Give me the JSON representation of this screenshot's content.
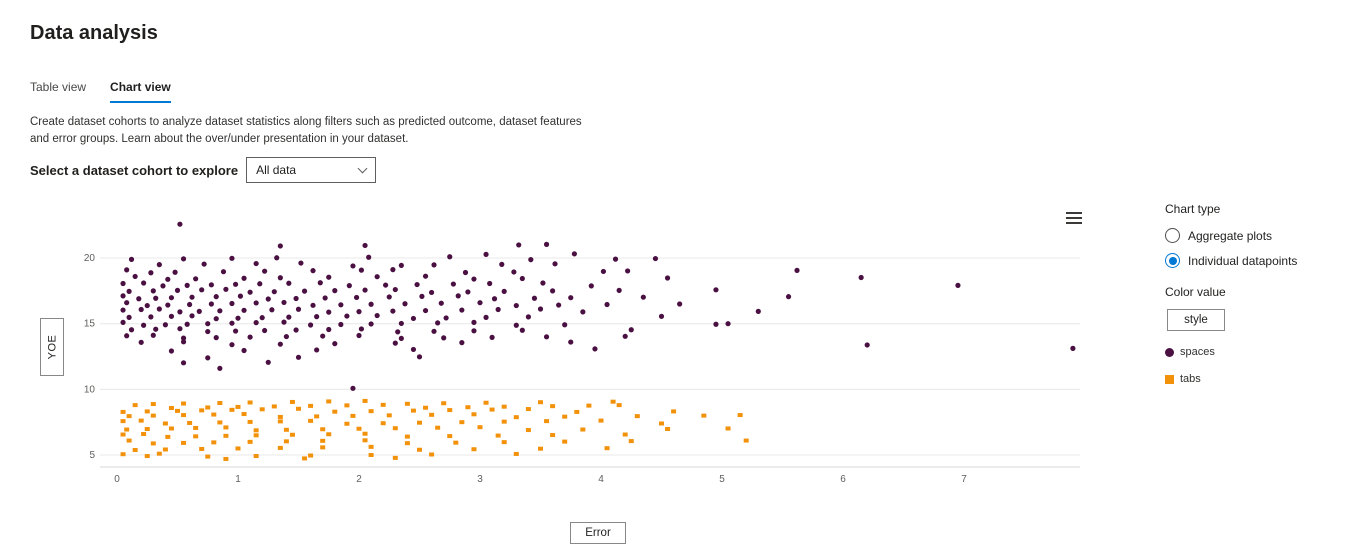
{
  "page": {
    "title": "Data analysis"
  },
  "tabs": [
    {
      "label": "Table view",
      "active": false
    },
    {
      "label": "Chart view",
      "active": true
    }
  ],
  "description": "Create dataset cohorts to analyze dataset statistics along filters such as predicted outcome, dataset features and error groups. Learn about the over/under presentation in your dataset.",
  "cohort_selector": {
    "label": "Select a dataset cohort to explore",
    "value": "All data"
  },
  "chart_panel": {
    "chart_type_label": "Chart type",
    "options": [
      {
        "label": "Aggregate plots",
        "selected": false
      },
      {
        "label": "Individual datapoints",
        "selected": true
      }
    ],
    "color_value_label": "Color value",
    "style_button": "style",
    "legend": [
      {
        "label": "spaces",
        "color": "#4a1042",
        "shape": "circle"
      },
      {
        "label": "tabs",
        "color": "#f2910a",
        "shape": "square"
      }
    ],
    "accent_color": "#0078d4"
  },
  "chart_data": {
    "type": "scatter",
    "xlabel": "Error",
    "ylabel": "YOE",
    "x_ticks": [
      0,
      1,
      2,
      3,
      4,
      5,
      6,
      7
    ],
    "y_ticks": [
      5,
      10,
      15,
      20
    ],
    "xlim": [
      0,
      8
    ],
    "ylim": [
      4,
      23
    ],
    "grid": "horizontal",
    "legend_position": "right",
    "series": [
      {
        "name": "spaces",
        "color": "#4a1042",
        "marker": "circle",
        "rows": [
          {
            "y": 22.7,
            "x": [
              0.52
            ]
          },
          {
            "y": 21.0,
            "x": [
              1.35,
              2.05,
              3.32,
              3.55
            ]
          },
          {
            "y": 20.2,
            "x": [
              3.05,
              3.78
            ]
          },
          {
            "y": 20.0,
            "x": [
              0.12,
              0.55,
              0.95,
              1.32,
              2.08,
              2.75,
              3.42,
              4.12,
              4.45
            ]
          },
          {
            "y": 19.5,
            "x": [
              0.35,
              0.72,
              1.15,
              1.52,
              1.95,
              2.35,
              2.62,
              3.18,
              3.62
            ]
          },
          {
            "y": 19.0,
            "x": [
              0.08,
              0.28,
              0.48,
              0.88,
              1.22,
              1.62,
              2.02,
              2.28,
              2.88,
              3.28,
              4.02,
              4.22,
              5.62
            ]
          },
          {
            "y": 18.5,
            "x": [
              0.15,
              0.42,
              0.65,
              1.05,
              1.35,
              1.75,
              2.15,
              2.55,
              2.95,
              3.35,
              4.55,
              6.15
            ]
          },
          {
            "y": 18.0,
            "x": [
              0.05,
              0.22,
              0.38,
              0.58,
              0.78,
              0.98,
              1.18,
              1.42,
              1.68,
              1.92,
              2.22,
              2.48,
              2.78,
              3.08,
              3.52,
              3.92,
              6.95
            ]
          },
          {
            "y": 17.5,
            "x": [
              0.1,
              0.3,
              0.5,
              0.7,
              0.9,
              1.1,
              1.3,
              1.55,
              1.8,
              2.05,
              2.3,
              2.6,
              2.9,
              3.2,
              3.6,
              4.15,
              4.95
            ]
          },
          {
            "y": 17.0,
            "x": [
              0.05,
              0.18,
              0.32,
              0.45,
              0.62,
              0.82,
              1.02,
              1.25,
              1.48,
              1.72,
              1.98,
              2.25,
              2.52,
              2.82,
              3.12,
              3.45,
              3.75,
              4.35,
              5.55
            ]
          },
          {
            "y": 16.5,
            "x": [
              0.08,
              0.25,
              0.42,
              0.6,
              0.78,
              0.95,
              1.15,
              1.38,
              1.62,
              1.85,
              2.1,
              2.38,
              2.68,
              3.0,
              3.3,
              3.65,
              4.05,
              4.65
            ]
          },
          {
            "y": 16.0,
            "x": [
              0.05,
              0.2,
              0.35,
              0.52,
              0.68,
              0.85,
              1.05,
              1.28,
              1.5,
              1.75,
              2.0,
              2.28,
              2.55,
              2.85,
              3.15,
              3.5,
              3.85,
              5.3
            ]
          },
          {
            "y": 15.5,
            "x": [
              0.1,
              0.28,
              0.45,
              0.62,
              0.82,
              1.0,
              1.2,
              1.42,
              1.65,
              1.9,
              2.15,
              2.45,
              2.72,
              3.05,
              3.4,
              4.5
            ]
          },
          {
            "y": 15.0,
            "x": [
              0.05,
              0.22,
              0.4,
              0.58,
              0.75,
              0.95,
              1.15,
              1.38,
              1.6,
              1.85,
              2.1,
              2.35,
              2.65,
              2.95,
              3.3,
              3.7,
              4.95,
              5.05
            ]
          },
          {
            "y": 14.5,
            "x": [
              0.12,
              0.32,
              0.52,
              0.75,
              0.98,
              1.22,
              1.48,
              1.75,
              2.02,
              2.32,
              2.62,
              2.95,
              3.35,
              4.25
            ]
          },
          {
            "y": 14.0,
            "x": [
              0.08,
              0.3,
              0.55,
              0.82,
              1.1,
              1.4,
              1.7,
              2.0,
              2.35,
              2.7,
              3.1,
              3.55,
              4.2
            ]
          },
          {
            "y": 13.5,
            "x": [
              0.2,
              0.55,
              0.95,
              1.35,
              1.8,
              2.3,
              2.85,
              3.75,
              6.2
            ]
          },
          {
            "y": 13.0,
            "x": [
              0.45,
              1.05,
              1.65,
              2.45,
              3.95,
              7.9
            ]
          },
          {
            "y": 12.5,
            "x": [
              0.75,
              1.5,
              2.5
            ]
          },
          {
            "y": 12.0,
            "x": [
              0.55,
              1.25
            ]
          },
          {
            "y": 11.5,
            "x": [
              0.85
            ]
          },
          {
            "y": 10.2,
            "x": [
              1.95
            ]
          }
        ]
      },
      {
        "name": "tabs",
        "color": "#f2910a",
        "marker": "square",
        "rows": [
          {
            "y": 9.0,
            "x": [
              0.3,
              0.55,
              0.85,
              1.1,
              1.45,
              1.75,
              2.05,
              2.4,
              2.7,
              3.05,
              3.5,
              4.1
            ]
          },
          {
            "y": 8.7,
            "x": [
              0.15,
              0.45,
              0.75,
              1.0,
              1.3,
              1.6,
              1.9,
              2.2,
              2.55,
              2.9,
              3.2,
              3.6,
              3.9,
              4.15
            ]
          },
          {
            "y": 8.4,
            "x": [
              0.05,
              0.25,
              0.5,
              0.7,
              0.95,
              1.2,
              1.5,
              1.8,
              2.1,
              2.45,
              2.75,
              3.1,
              3.4,
              3.8,
              4.6
            ]
          },
          {
            "y": 8.0,
            "x": [
              0.1,
              0.3,
              0.55,
              0.8,
              1.05,
              1.35,
              1.65,
              1.95,
              2.25,
              2.6,
              2.95,
              3.3,
              3.7,
              4.3,
              4.85,
              5.15
            ]
          },
          {
            "y": 7.5,
            "x": [
              0.05,
              0.2,
              0.4,
              0.6,
              0.85,
              1.1,
              1.35,
              1.6,
              1.9,
              2.2,
              2.5,
              2.85,
              3.2,
              3.55,
              4.0,
              4.5
            ]
          },
          {
            "y": 7.0,
            "x": [
              0.08,
              0.25,
              0.45,
              0.65,
              0.9,
              1.15,
              1.4,
              1.7,
              2.0,
              2.3,
              2.65,
              3.0,
              3.4,
              3.85,
              4.55,
              5.05
            ]
          },
          {
            "y": 6.5,
            "x": [
              0.05,
              0.22,
              0.42,
              0.65,
              0.9,
              1.15,
              1.45,
              1.75,
              2.05,
              2.4,
              2.75,
              3.15,
              3.6,
              4.2
            ]
          },
          {
            "y": 6.0,
            "x": [
              0.1,
              0.3,
              0.55,
              0.8,
              1.1,
              1.4,
              1.7,
              2.05,
              2.4,
              2.8,
              3.2,
              3.7,
              4.25,
              5.2
            ]
          },
          {
            "y": 5.5,
            "x": [
              0.15,
              0.4,
              0.7,
              1.0,
              1.35,
              1.7,
              2.1,
              2.5,
              2.95,
              3.5,
              4.05
            ]
          },
          {
            "y": 5.0,
            "x": [
              0.05,
              0.35,
              0.75,
              1.15,
              1.6,
              2.1,
              2.6,
              3.3
            ]
          },
          {
            "y": 4.8,
            "x": [
              0.25,
              0.9,
              1.55,
              2.3
            ]
          }
        ]
      }
    ]
  }
}
